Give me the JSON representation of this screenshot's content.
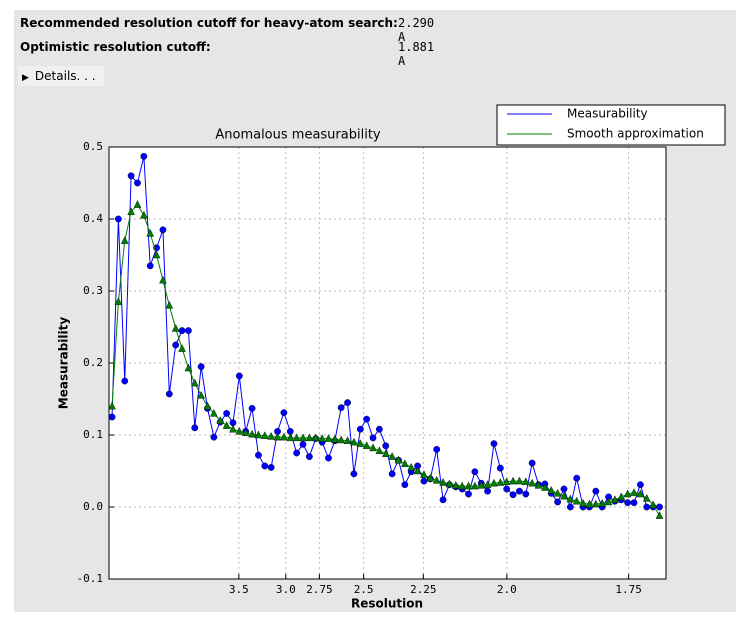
{
  "header": {
    "rows": [
      {
        "label": "Recommended resolution cutoff for heavy-atom search:",
        "value": "2.290 A"
      },
      {
        "label": "Optimistic resolution cutoff:",
        "value": "1.881 A"
      }
    ],
    "details": "Details. . ."
  },
  "chart_data": {
    "type": "line",
    "title": "Anomalous measurability",
    "x_label": "Resolution",
    "y_label": "Measurability",
    "x": [
      0.0019,
      0.0059,
      0.0099,
      0.0139,
      0.0179,
      0.0219,
      0.0259,
      0.0299,
      0.0339,
      0.0379,
      0.0419,
      0.0459,
      0.0499,
      0.0539,
      0.0579,
      0.0619,
      0.0659,
      0.0699,
      0.0739,
      0.0779,
      0.0819,
      0.0859,
      0.0899,
      0.0939,
      0.0979,
      0.1019,
      0.1059,
      0.1099,
      0.1139,
      0.1179,
      0.1219,
      0.1259,
      0.1299,
      0.1339,
      0.1379,
      0.1419,
      0.1459,
      0.1499,
      0.1539,
      0.1579,
      0.1619,
      0.1659,
      0.1699,
      0.1739,
      0.1779,
      0.1819,
      0.1859,
      0.1899,
      0.1939,
      0.1979,
      0.2019,
      0.2059,
      0.2099,
      0.2139,
      0.2179,
      0.2219,
      0.2259,
      0.2299,
      0.2339,
      0.2379,
      0.2419,
      0.2459,
      0.2499,
      0.2539,
      0.2579,
      0.2619,
      0.2659,
      0.2699,
      0.2739,
      0.2779,
      0.2819,
      0.2859,
      0.2899,
      0.2939,
      0.2979,
      0.3019,
      0.3059,
      0.3099,
      0.3139,
      0.3179,
      0.3219,
      0.3259,
      0.3299,
      0.3339,
      0.3379,
      0.3419,
      0.3459
    ],
    "series": [
      {
        "name": "Measurability",
        "color": "#0000ff",
        "marker": "circle",
        "values": [
          0.125,
          0.4,
          0.175,
          0.46,
          0.45,
          0.487,
          0.335,
          0.36,
          0.385,
          0.157,
          0.225,
          0.245,
          0.245,
          0.11,
          0.195,
          0.137,
          0.097,
          0.118,
          0.13,
          0.117,
          0.182,
          0.105,
          0.137,
          0.072,
          0.057,
          0.055,
          0.105,
          0.131,
          0.105,
          0.075,
          0.087,
          0.07,
          0.095,
          0.09,
          0.068,
          0.092,
          0.138,
          0.145,
          0.046,
          0.108,
          0.122,
          0.096,
          0.108,
          0.085,
          0.046,
          0.065,
          0.031,
          0.049,
          0.057,
          0.036,
          0.039,
          0.08,
          0.01,
          0.031,
          0.028,
          0.025,
          0.018,
          0.049,
          0.033,
          0.022,
          0.088,
          0.054,
          0.025,
          0.017,
          0.022,
          0.018,
          0.061,
          0.031,
          0.032,
          0.019,
          0.007,
          0.025,
          0.0,
          0.04,
          0.0,
          0.0,
          0.022,
          0.0,
          0.014,
          0.008,
          0.01,
          0.006,
          0.006,
          0.031,
          0.0,
          0.0,
          0.0
        ]
      },
      {
        "name": "Smooth approximation",
        "color": "#008000",
        "marker": "triangle",
        "values": [
          0.14,
          0.285,
          0.37,
          0.41,
          0.42,
          0.405,
          0.38,
          0.35,
          0.315,
          0.28,
          0.248,
          0.22,
          0.193,
          0.172,
          0.155,
          0.14,
          0.13,
          0.12,
          0.113,
          0.108,
          0.105,
          0.103,
          0.101,
          0.1,
          0.099,
          0.098,
          0.097,
          0.097,
          0.096,
          0.096,
          0.096,
          0.096,
          0.096,
          0.095,
          0.095,
          0.094,
          0.093,
          0.092,
          0.09,
          0.088,
          0.085,
          0.082,
          0.078,
          0.074,
          0.07,
          0.065,
          0.06,
          0.055,
          0.05,
          0.045,
          0.04,
          0.037,
          0.034,
          0.032,
          0.03,
          0.029,
          0.029,
          0.029,
          0.03,
          0.031,
          0.033,
          0.034,
          0.035,
          0.036,
          0.036,
          0.035,
          0.033,
          0.03,
          0.027,
          0.023,
          0.019,
          0.015,
          0.011,
          0.008,
          0.005,
          0.004,
          0.004,
          0.005,
          0.007,
          0.01,
          0.014,
          0.018,
          0.02,
          0.018,
          0.012,
          0.003,
          -0.012
        ]
      }
    ],
    "xlim": [
      0,
      0.35
    ],
    "xticks": [
      {
        "value": 0.0816,
        "label": "3.5"
      },
      {
        "value": 0.1111,
        "label": "3.0"
      },
      {
        "value": 0.1322,
        "label": "2.75"
      },
      {
        "value": 0.16,
        "label": "2.5"
      },
      {
        "value": 0.1975,
        "label": "2.25"
      },
      {
        "value": 0.25,
        "label": "2.0"
      },
      {
        "value": 0.3265,
        "label": "1.75"
      }
    ],
    "ylim": [
      -0.1,
      0.5
    ],
    "yticks": [
      -0.1,
      {
        "value": 0,
        "label": "0.0"
      },
      0.1,
      0.2,
      0.3,
      0.4,
      0.5
    ],
    "grid": true,
    "legend": "upper right"
  }
}
